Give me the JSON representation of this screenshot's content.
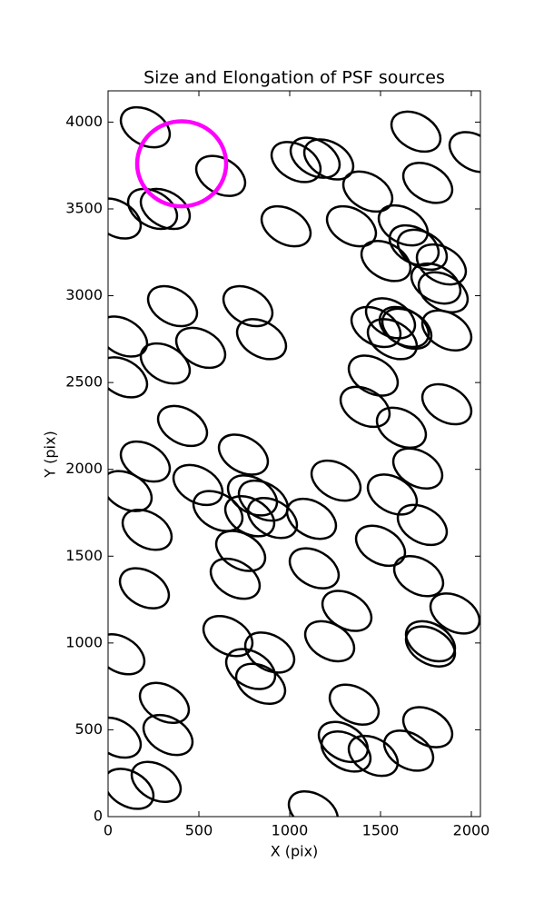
{
  "chart_data": {
    "type": "ellipse",
    "title": "Size and Elongation of PSF sources",
    "x_label": "X (pix)",
    "y_label": "Y (pix)",
    "xlim": [
      0,
      2050
    ],
    "ylim": [
      0,
      4180
    ],
    "xticks": [
      0,
      500,
      1000,
      1500,
      2000
    ],
    "yticks": [
      0,
      500,
      1000,
      1500,
      2000,
      2500,
      3000,
      3500,
      4000
    ],
    "ellipses": {
      "color": "#000000",
      "width": 290,
      "height": 200,
      "angle": -30,
      "x": [
        205,
        1695,
        2015,
        620,
        1035,
        1140,
        1215,
        1430,
        1760,
        245,
        315,
        45,
        980,
        1340,
        1625,
        1530,
        1685,
        1730,
        1835,
        1805,
        1845,
        355,
        770,
        845,
        80,
        510,
        315,
        80,
        1475,
        1555,
        1630,
        1565,
        1645,
        1865,
        1460,
        1415,
        1615,
        1865,
        410,
        745,
        205,
        1705,
        105,
        495,
        1255,
        1565,
        605,
        795,
        855,
        780,
        905,
        1120,
        215,
        1730,
        1500,
        730,
        1135,
        700,
        1710,
        200,
        1315,
        1910,
        65,
        660,
        1220,
        1775,
        1775,
        890,
        785,
        840,
        310,
        1355,
        330,
        1760,
        45,
        1295,
        1310,
        1460,
        1655,
        265,
        115,
        1130
      ],
      "y": [
        3970,
        3945,
        3827,
        3690,
        3770,
        3795,
        3785,
        3600,
        3650,
        3500,
        3500,
        3445,
        3400,
        3400,
        3405,
        3200,
        3290,
        3265,
        3180,
        3070,
        3020,
        2940,
        2940,
        2750,
        2765,
        2700,
        2610,
        2530,
        2820,
        2870,
        2820,
        2750,
        2810,
        2800,
        2540,
        2360,
        2240,
        2375,
        2250,
        2085,
        2045,
        2005,
        1875,
        1910,
        1935,
        1855,
        1760,
        1850,
        1820,
        1730,
        1720,
        1715,
        1652,
        1680,
        1560,
        1530,
        1430,
        1370,
        1385,
        1315,
        1185,
        1170,
        935,
        1040,
        1010,
        1010,
        980,
        945,
        850,
        765,
        655,
        645,
        470,
        515,
        455,
        430,
        375,
        350,
        380,
        200,
        160,
        30
      ]
    },
    "highlight": {
      "color": "#ff00ff",
      "x": 405,
      "y": 3760,
      "radius": 245
    }
  }
}
